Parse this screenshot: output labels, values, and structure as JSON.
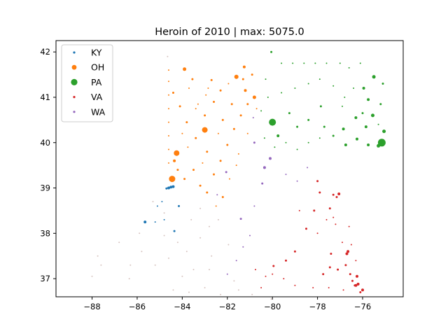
{
  "chart_data": {
    "type": "scatter",
    "title": "Heroin of 2010 | max: 5075.0",
    "xlabel": "",
    "ylabel": "",
    "xlim": [
      -89.6,
      -74.2
    ],
    "ylim": [
      36.6,
      42.25
    ],
    "xticks": [
      -88,
      -86,
      -84,
      -82,
      -80,
      -78,
      -76
    ],
    "yticks": [
      37,
      38,
      39,
      40,
      41,
      42
    ],
    "xtick_labels": [
      "−88",
      "−86",
      "−84",
      "−82",
      "−80",
      "−78",
      "−76"
    ],
    "ytick_labels": [
      "37",
      "38",
      "39",
      "40",
      "41",
      "42"
    ],
    "grid": false,
    "legend_position": "top-left",
    "series": [
      {
        "name": "KY",
        "color": "#1f77b4",
        "points": [
          [
            -84.6,
            39.0,
            2
          ],
          [
            -84.5,
            39.02,
            2
          ],
          [
            -84.4,
            39.03,
            2
          ],
          [
            -84.7,
            38.99,
            1.5
          ],
          [
            -85.65,
            38.25,
            2
          ],
          [
            -84.15,
            38.6,
            1.5
          ],
          [
            -84.35,
            38.05,
            1.5
          ],
          [
            -84.8,
            38.3,
            1
          ],
          [
            -85.2,
            38.25,
            1
          ],
          [
            -84.9,
            38.7,
            1
          ],
          [
            -85.1,
            38.6,
            1
          ]
        ]
      },
      {
        "name": "OH",
        "color": "#ff7f0e",
        "points": [
          [
            -84.45,
            39.2,
            4.5
          ],
          [
            -84.25,
            39.77,
            4
          ],
          [
            -83.0,
            40.28,
            4
          ],
          [
            -81.6,
            41.45,
            3
          ],
          [
            -83.9,
            41.62,
            2.5
          ],
          [
            -81.25,
            41.67,
            2
          ],
          [
            -80.8,
            41.0,
            2.5
          ],
          [
            -81.2,
            41.15,
            2
          ],
          [
            -82.7,
            41.38,
            1.5
          ],
          [
            -82.3,
            41.15,
            1.5
          ],
          [
            -83.55,
            41.4,
            1.5
          ],
          [
            -84.35,
            39.6,
            2
          ],
          [
            -84.2,
            39.4,
            1.5
          ],
          [
            -83.9,
            39.2,
            1.5
          ],
          [
            -83.5,
            39.4,
            1.5
          ],
          [
            -83.2,
            39.05,
            1.5
          ],
          [
            -82.9,
            38.9,
            1.5
          ],
          [
            -82.6,
            39.3,
            1.5
          ],
          [
            -82.3,
            39.6,
            1.5
          ],
          [
            -82.0,
            39.95,
            1.5
          ],
          [
            -81.7,
            40.3,
            1.5
          ],
          [
            -81.4,
            40.6,
            1.5
          ],
          [
            -81.1,
            40.85,
            1.5
          ],
          [
            -82.9,
            39.8,
            1.5
          ],
          [
            -83.4,
            40.1,
            1.5
          ],
          [
            -83.8,
            40.45,
            1.5
          ],
          [
            -84.1,
            40.8,
            1.5
          ],
          [
            -84.4,
            41.1,
            1.5
          ],
          [
            -83.0,
            40.6,
            1.5
          ],
          [
            -82.6,
            40.9,
            1.5
          ],
          [
            -82.2,
            40.5,
            1.5
          ],
          [
            -81.8,
            40.85,
            1.5
          ],
          [
            -81.3,
            41.4,
            1.5
          ],
          [
            -80.9,
            41.5,
            1.5
          ],
          [
            -82.2,
            38.8,
            1.5
          ],
          [
            -82.5,
            38.6,
            1
          ],
          [
            -84.6,
            41.6,
            1
          ],
          [
            -84.6,
            41.35,
            1
          ],
          [
            -84.6,
            41.05,
            1
          ],
          [
            -84.6,
            40.75,
            1
          ],
          [
            -84.6,
            40.45,
            1
          ],
          [
            -84.6,
            40.15,
            1
          ],
          [
            -84.6,
            39.85,
            1
          ],
          [
            -84.6,
            39.55,
            1
          ],
          [
            -83.7,
            41.2,
            1
          ],
          [
            -83.3,
            40.85,
            1
          ],
          [
            -82.95,
            41.05,
            1
          ],
          [
            -81.5,
            39.75,
            1
          ],
          [
            -81.1,
            40.2,
            1
          ],
          [
            -80.7,
            40.75,
            1
          ],
          [
            -81.9,
            39.2,
            1
          ],
          [
            -83.1,
            39.55,
            1
          ],
          [
            -83.75,
            39.9,
            1
          ],
          [
            -84.0,
            40.2,
            1
          ],
          [
            -82.4,
            40.2,
            1
          ],
          [
            -81.6,
            39.5,
            1
          ],
          [
            -82.85,
            41.2,
            1
          ],
          [
            -81.95,
            41.3,
            1
          ],
          [
            -83.4,
            40.75,
            1
          ]
        ]
      },
      {
        "name": "PA",
        "color": "#2ca02c",
        "points": [
          [
            -75.15,
            40.0,
            5.5
          ],
          [
            -80.0,
            40.45,
            5
          ],
          [
            -75.3,
            39.93,
            2.5
          ],
          [
            -75.05,
            40.25,
            2.5
          ],
          [
            -75.55,
            40.6,
            2.5
          ],
          [
            -75.75,
            40.95,
            2
          ],
          [
            -75.5,
            41.45,
            2.5
          ],
          [
            -75.95,
            41.2,
            2
          ],
          [
            -75.85,
            40.35,
            2
          ],
          [
            -75.75,
            39.95,
            2
          ],
          [
            -76.25,
            40.08,
            2
          ],
          [
            -76.75,
            39.95,
            2
          ],
          [
            -76.3,
            40.55,
            2
          ],
          [
            -76.85,
            40.3,
            2
          ],
          [
            -79.75,
            40.15,
            2
          ],
          [
            -79.25,
            40.65,
            1.5
          ],
          [
            -78.9,
            40.35,
            1.5
          ],
          [
            -78.4,
            40.5,
            1.5
          ],
          [
            -77.85,
            40.8,
            1.5
          ],
          [
            -77.3,
            40.15,
            1.5
          ],
          [
            -77.7,
            40.35,
            1.5
          ],
          [
            -80.05,
            42.0,
            1.5
          ],
          [
            -76.0,
            40.65,
            1.5
          ],
          [
            -75.2,
            40.85,
            1.5
          ],
          [
            -75.1,
            41.3,
            1.5
          ],
          [
            -76.6,
            41.65,
            1
          ],
          [
            -76.1,
            41.75,
            1
          ],
          [
            -77.0,
            41.75,
            1
          ],
          [
            -77.6,
            41.75,
            1
          ],
          [
            -78.1,
            41.75,
            1
          ],
          [
            -78.6,
            41.75,
            1
          ],
          [
            -79.1,
            41.75,
            1
          ],
          [
            -79.6,
            41.75,
            1
          ],
          [
            -80.3,
            41.4,
            1
          ],
          [
            -80.2,
            41.0,
            1
          ],
          [
            -79.6,
            41.1,
            1
          ],
          [
            -79.0,
            41.2,
            1
          ],
          [
            -78.4,
            41.3,
            1
          ],
          [
            -77.9,
            41.4,
            1
          ],
          [
            -77.3,
            41.25,
            1
          ],
          [
            -76.8,
            41.0,
            1
          ],
          [
            -76.4,
            41.2,
            1
          ],
          [
            -80.35,
            40.1,
            1
          ],
          [
            -80.5,
            40.7,
            1
          ],
          [
            -79.9,
            39.9,
            1
          ],
          [
            -78.4,
            40.0,
            1
          ],
          [
            -77.9,
            40.1,
            1
          ],
          [
            -76.9,
            40.8,
            1
          ],
          [
            -79.4,
            40.0,
            1
          ],
          [
            -78.9,
            39.85,
            1
          ],
          [
            -75.3,
            40.4,
            1
          ]
        ]
      },
      {
        "name": "VA",
        "color": "#d62728",
        "points": [
          [
            -77.05,
            38.87,
            2
          ],
          [
            -77.3,
            38.85,
            1.5
          ],
          [
            -77.45,
            38.55,
            1.5
          ],
          [
            -77.15,
            38.8,
            1.5
          ],
          [
            -76.65,
            37.6,
            2
          ],
          [
            -76.25,
            37.05,
            2
          ],
          [
            -76.2,
            36.88,
            2
          ],
          [
            -76.3,
            36.85,
            2
          ],
          [
            -76.0,
            36.75,
            2
          ],
          [
            -76.1,
            36.7,
            1.5
          ],
          [
            -76.55,
            37.1,
            1.5
          ],
          [
            -76.75,
            37.3,
            1.5
          ],
          [
            -77.1,
            37.2,
            1.5
          ],
          [
            -77.4,
            37.55,
            1.5
          ],
          [
            -77.45,
            37.25,
            1.5
          ],
          [
            -77.75,
            37.1,
            1.5
          ],
          [
            -78.0,
            39.15,
            1.5
          ],
          [
            -77.9,
            38.9,
            1.5
          ],
          [
            -78.15,
            38.5,
            1.5
          ],
          [
            -78.5,
            38.1,
            1.5
          ],
          [
            -79.0,
            37.6,
            1.5
          ],
          [
            -79.4,
            37.4,
            1.5
          ],
          [
            -79.95,
            37.28,
            1.5
          ],
          [
            -80.0,
            37.1,
            1
          ],
          [
            -80.3,
            37.05,
            1
          ],
          [
            -78.8,
            38.5,
            1
          ],
          [
            -77.6,
            38.3,
            1
          ],
          [
            -76.9,
            37.8,
            1
          ],
          [
            -76.3,
            37.4,
            1
          ],
          [
            -76.85,
            36.75,
            1
          ],
          [
            -77.5,
            36.8,
            1
          ],
          [
            -78.2,
            36.8,
            1
          ],
          [
            -79.0,
            36.85,
            1
          ],
          [
            -79.5,
            37.0,
            1
          ],
          [
            -80.5,
            36.8,
            1
          ],
          [
            -80.75,
            37.2,
            1
          ],
          [
            -78.0,
            38.0,
            1
          ],
          [
            -77.2,
            38.2,
            1
          ],
          [
            -76.5,
            37.75,
            1
          ],
          [
            -76.7,
            37.55,
            2
          ],
          [
            -76.45,
            36.95,
            1.5
          ],
          [
            -76.35,
            36.85,
            1.5
          ],
          [
            -77.3,
            38.35,
            1
          ],
          [
            -76.6,
            38.15,
            1
          ]
        ]
      },
      {
        "name": "WA",
        "color": "#9467bd",
        "points": [
          [
            -80.1,
            39.65,
            2
          ],
          [
            -80.35,
            39.45,
            2
          ],
          [
            -80.45,
            39.1,
            1.5
          ],
          [
            -81.4,
            38.32,
            1.5
          ],
          [
            -80.8,
            40.0,
            1.5
          ],
          [
            -82.05,
            39.35,
            1.5
          ],
          [
            -82.45,
            38.85,
            1
          ],
          [
            -79.4,
            39.3,
            1
          ],
          [
            -78.9,
            39.15,
            1
          ],
          [
            -78.45,
            39.45,
            1
          ],
          [
            -80.8,
            38.6,
            1
          ],
          [
            -81.0,
            37.95,
            1
          ],
          [
            -81.3,
            37.7,
            1
          ],
          [
            -81.6,
            37.4,
            1
          ],
          [
            -82.0,
            37.1,
            1
          ],
          [
            -80.85,
            40.55,
            1
          ]
        ]
      },
      {
        "name": "",
        "color": "#8c564b",
        "points": [
          [
            -87.75,
            37.5,
            1
          ],
          [
            -87.6,
            37.3,
            1
          ],
          [
            -88.0,
            37.05,
            1
          ],
          [
            -86.35,
            37.0,
            1
          ],
          [
            -86.8,
            37.8,
            1
          ],
          [
            -85.8,
            37.6,
            1
          ],
          [
            -85.2,
            37.3,
            1
          ],
          [
            -84.6,
            37.45,
            1
          ],
          [
            -84.8,
            37.95,
            1
          ],
          [
            -85.3,
            38.7,
            1
          ],
          [
            -84.2,
            37.8,
            1
          ],
          [
            -83.8,
            37.6,
            1
          ],
          [
            -83.2,
            37.9,
            1
          ],
          [
            -82.8,
            37.2,
            1
          ],
          [
            -83.5,
            37.2,
            1
          ],
          [
            -84.0,
            37.05,
            1
          ],
          [
            -84.4,
            36.75,
            1
          ],
          [
            -83.7,
            36.7,
            1
          ],
          [
            -83.0,
            36.8,
            1
          ],
          [
            -82.3,
            36.65,
            1
          ],
          [
            -81.5,
            36.75,
            1
          ],
          [
            -80.9,
            36.65,
            1
          ],
          [
            -80.05,
            36.55,
            1
          ],
          [
            -82.7,
            37.5,
            1
          ],
          [
            -84.8,
            38.45,
            1
          ],
          [
            -85.9,
            38.0,
            1
          ],
          [
            -86.3,
            37.3,
            1
          ],
          [
            -81.7,
            36.95,
            1
          ],
          [
            -82.4,
            38.3,
            1
          ],
          [
            -83.6,
            38.3,
            1
          ],
          [
            -83.2,
            38.55,
            1
          ],
          [
            -82.8,
            38.15,
            1
          ],
          [
            -81.95,
            37.75,
            1
          ],
          [
            -84.65,
            41.9,
            1
          ]
        ]
      }
    ]
  },
  "legend": [
    {
      "label": "KY",
      "color": "#1f77b4",
      "size": 1.6
    },
    {
      "label": "OH",
      "color": "#ff7f0e",
      "size": 3.4
    },
    {
      "label": "PA",
      "color": "#2ca02c",
      "size": 4.6
    },
    {
      "label": "VA",
      "color": "#d62728",
      "size": 1.6
    },
    {
      "label": "WA",
      "color": "#9467bd",
      "size": 1.6
    }
  ]
}
